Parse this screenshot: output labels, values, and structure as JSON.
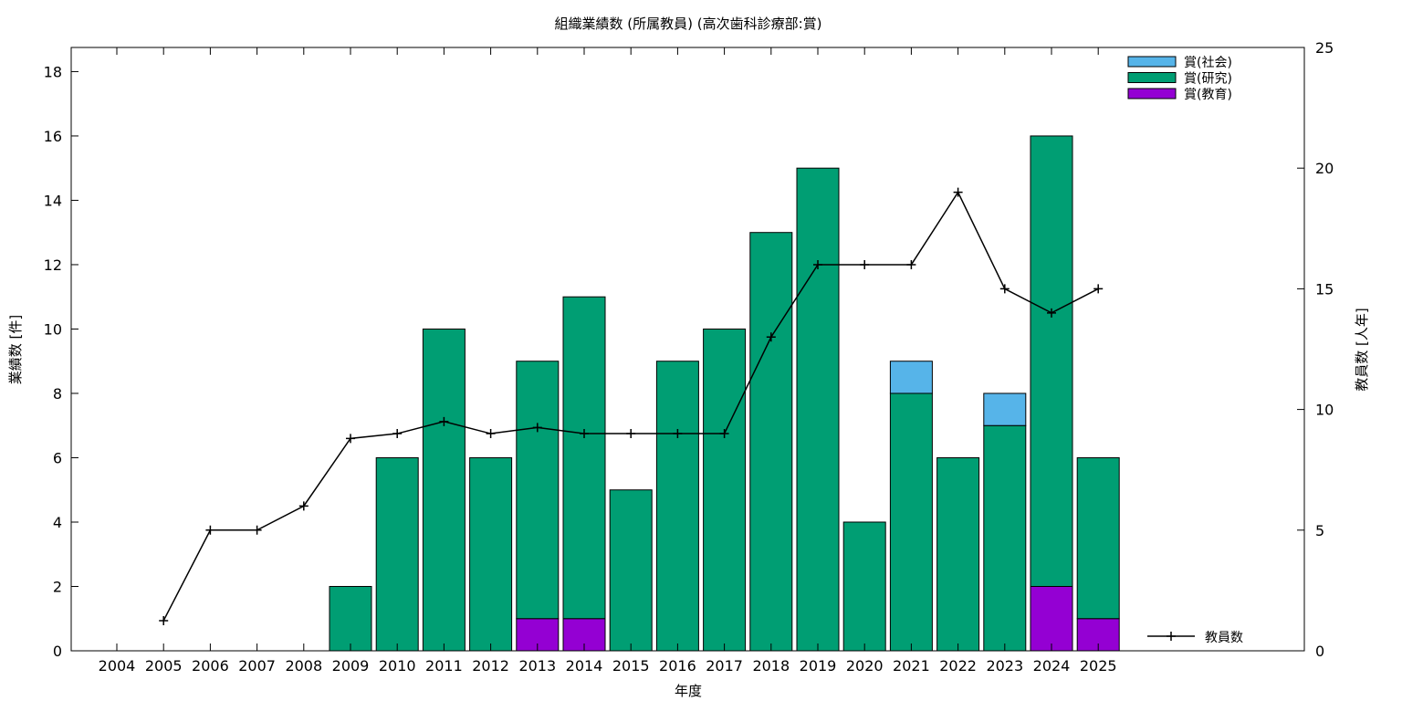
{
  "chart_data": {
    "type": "bar",
    "title": "組織業績数 (所属教員) (高次歯科診療部:賞)",
    "xlabel": "年度",
    "ylabel": "業績数 [件]",
    "y2label": "教員数 [人年]",
    "stacked": true,
    "ylim": [
      0,
      18.75
    ],
    "y2lim": [
      0,
      25
    ],
    "yticks": [
      0,
      2,
      4,
      6,
      8,
      10,
      12,
      14,
      16,
      18
    ],
    "y2ticks": [
      0,
      5,
      10,
      15,
      20,
      25
    ],
    "legend_position": "top-right",
    "line_legend_position": "bottom-right",
    "categories": [
      "2004",
      "2005",
      "2006",
      "2007",
      "2008",
      "2009",
      "2010",
      "2011",
      "2012",
      "2013",
      "2014",
      "2015",
      "2016",
      "2017",
      "2018",
      "2019",
      "2020",
      "2021",
      "2022",
      "2023",
      "2024",
      "2025"
    ],
    "series": [
      {
        "name": "賞(教育)",
        "color": "#9400d3",
        "values": [
          0,
          0,
          0,
          0,
          0,
          0,
          0,
          0,
          0,
          1,
          1,
          0,
          0,
          0,
          0,
          0,
          0,
          0,
          0,
          0,
          2,
          1
        ]
      },
      {
        "name": "賞(研究)",
        "color": "#009e73",
        "values": [
          0,
          0,
          0,
          0,
          0,
          2,
          6,
          10,
          6,
          8,
          10,
          5,
          9,
          10,
          13,
          15,
          4,
          8,
          6,
          7,
          14,
          5
        ]
      },
      {
        "name": "賞(社会)",
        "color": "#56b4e9",
        "values": [
          0,
          0,
          0,
          0,
          0,
          0,
          0,
          0,
          0,
          0,
          0,
          0,
          0,
          0,
          0,
          0,
          0,
          1,
          0,
          1,
          0,
          0
        ]
      }
    ],
    "line_series": {
      "name": "教員数",
      "axis": "y2",
      "color": "#000000",
      "values": [
        null,
        1.25,
        5,
        5,
        6,
        8.8,
        9,
        9.5,
        9,
        9.25,
        9,
        9,
        9,
        9,
        13,
        16,
        16,
        16,
        19,
        15,
        14,
        15
      ]
    }
  }
}
